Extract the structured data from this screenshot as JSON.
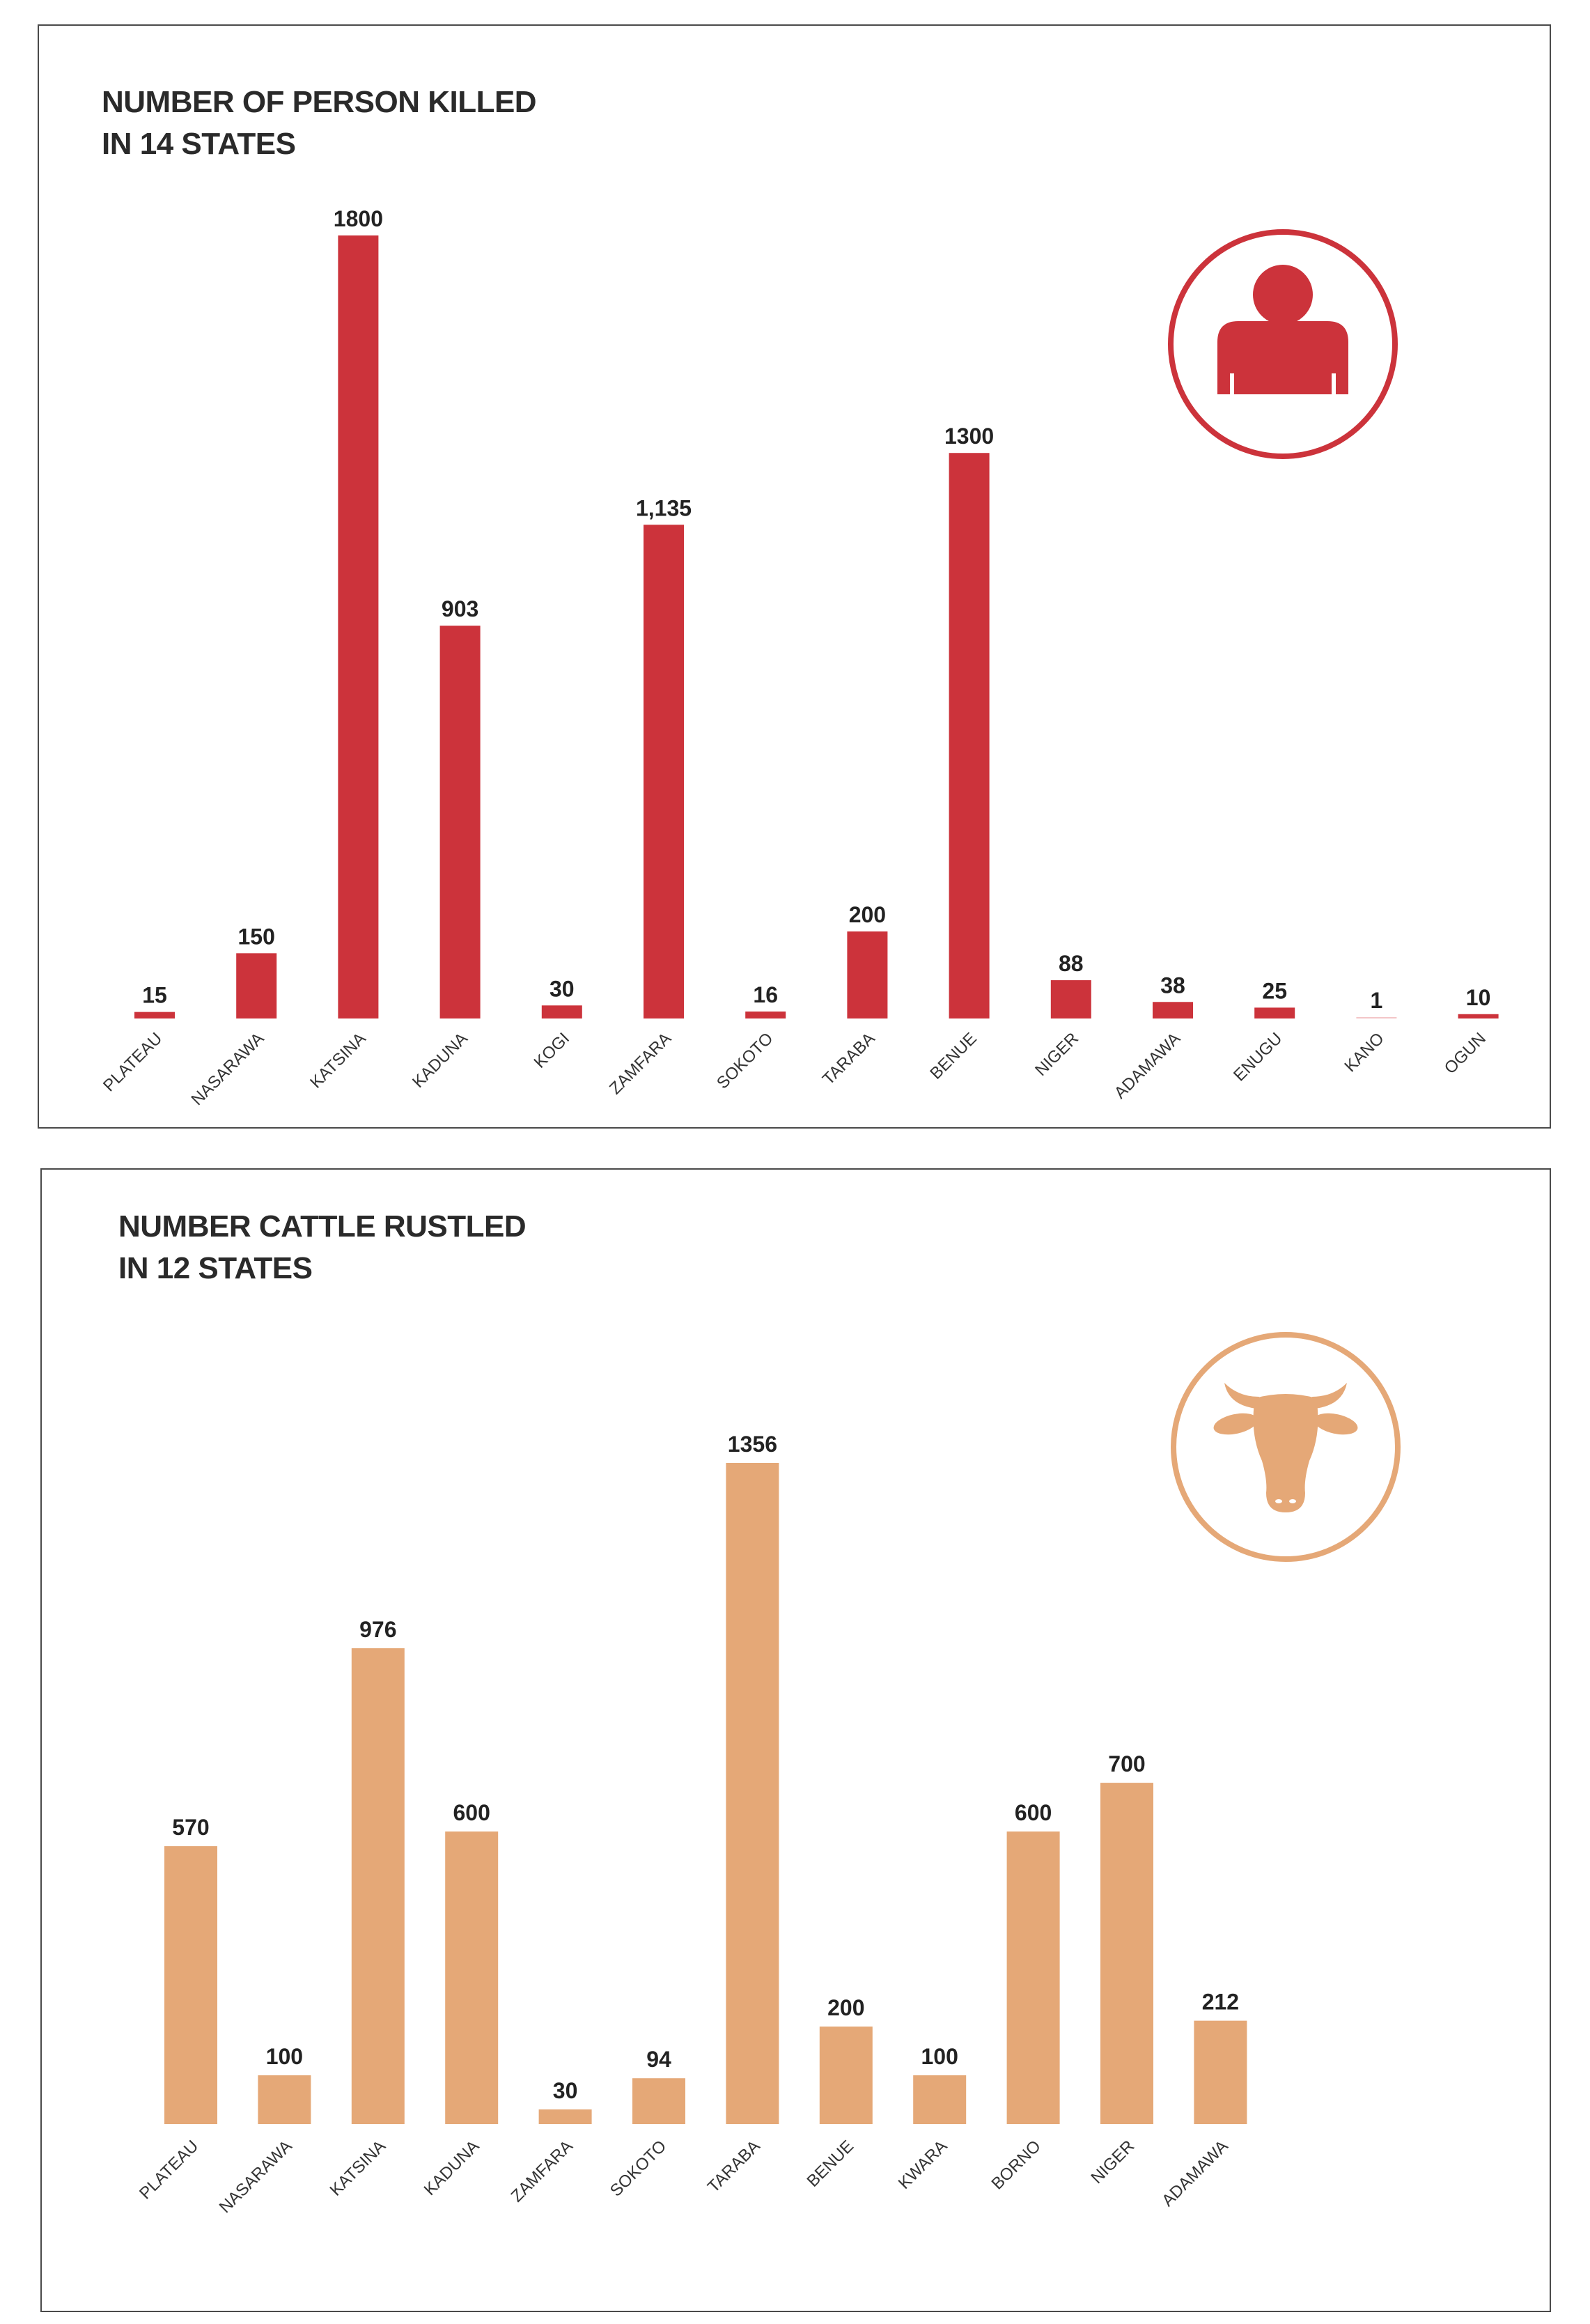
{
  "charts": [
    {
      "id": "killed",
      "icon": "person-icon",
      "accent": "#cc333b",
      "icon_color": "#cc333b",
      "chart_data": {
        "type": "bar",
        "title_lines": [
          "NUMBER OF PERSON KILLED",
          "IN 14 STATES"
        ],
        "categories": [
          "PLATEAU",
          "NASARAWA",
          "KATSINA",
          "KADUNA",
          "KOGI",
          "ZAMFARA",
          "SOKOTO",
          "TARABA",
          "BENUE",
          "NIGER",
          "ADAMAWA",
          "ENUGU",
          "KANO",
          "OGUN"
        ],
        "values": [
          15,
          150,
          1800,
          903,
          30,
          1135,
          16,
          200,
          1300,
          88,
          38,
          25,
          1,
          10
        ],
        "value_labels": [
          "15",
          "150",
          "1800",
          "903",
          "30",
          "1,135",
          "16",
          "200",
          "1300",
          "88",
          "38",
          "25",
          "1",
          "10"
        ],
        "ylim": [
          0,
          1800
        ],
        "grid": false,
        "legend": "none"
      }
    },
    {
      "id": "cattle",
      "icon": "bull-icon",
      "accent": "#e5a877",
      "icon_color": "#e5a877",
      "chart_data": {
        "type": "bar",
        "title_lines": [
          "NUMBER CATTLE RUSTLED",
          "IN 12 STATES"
        ],
        "categories": [
          "PLATEAU",
          "NASARAWA",
          "KATSINA",
          "KADUNA",
          "ZAMFARA",
          "SOKOTO",
          "TARABA",
          "BENUE",
          "KWARA",
          "BORNO",
          "NIGER",
          "ADAMAWA"
        ],
        "values": [
          570,
          100,
          976,
          600,
          30,
          94,
          1356,
          200,
          100,
          600,
          700,
          212
        ],
        "value_labels": [
          "570",
          "100",
          "976",
          "600",
          "30",
          "94",
          "1356",
          "200",
          "100",
          "600",
          "700",
          "212"
        ],
        "ylim": [
          0,
          1356
        ],
        "grid": false,
        "legend": "none"
      }
    }
  ]
}
